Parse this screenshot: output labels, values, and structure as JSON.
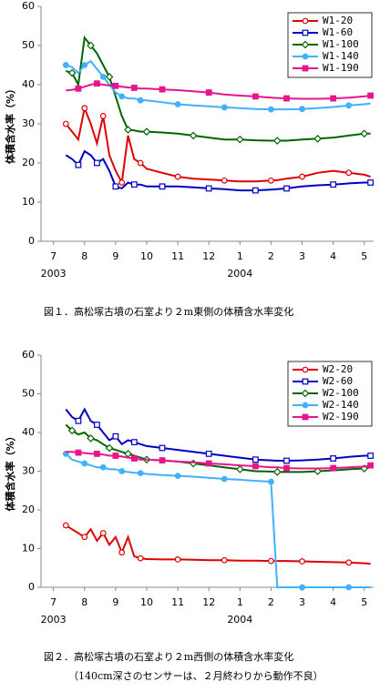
{
  "chart_data": [
    {
      "type": "line",
      "y_label": "体積含水率（%）",
      "caption": [
        "図１．高松塚古墳の石室より２m東側の体積含水率変化"
      ],
      "ylim": [
        0,
        60
      ],
      "yticks": [
        0,
        10,
        20,
        30,
        40,
        50,
        60
      ],
      "xlim": [
        6.6,
        17.3
      ],
      "xticks": [
        7,
        8,
        9,
        10,
        11,
        12,
        {
          "value": 13,
          "label": "1"
        },
        {
          "value": 14,
          "label": "2"
        },
        {
          "value": 15,
          "label": "3"
        },
        {
          "value": 16,
          "label": "4"
        },
        {
          "value": 17,
          "label": "5"
        }
      ],
      "year_labels": [
        {
          "value": 7,
          "label": "2003"
        },
        {
          "value": 13,
          "label": "2004"
        }
      ],
      "legend": "top-right",
      "x": [
        7.4,
        7.6,
        7.8,
        8,
        8.2,
        8.4,
        8.6,
        8.8,
        9,
        9.2,
        9.4,
        9.6,
        9.8,
        10,
        10.5,
        11,
        11.5,
        12,
        12.5,
        13,
        13.5,
        14,
        14.2,
        14.5,
        15,
        15.5,
        16,
        16.5,
        17,
        17.2
      ],
      "series": [
        {
          "name": "W1-20",
          "color": "#e00000",
          "marker": "circle-open",
          "values": [
            30,
            28,
            26,
            34,
            30,
            25,
            32,
            22,
            18,
            15,
            27,
            21,
            20,
            18.5,
            17.5,
            16.5,
            16,
            15.8,
            15.5,
            15.3,
            15.3,
            15.5,
            15.6,
            16,
            16.5,
            17.5,
            18,
            17.5,
            17,
            16.5
          ]
        },
        {
          "name": "W1-60",
          "color": "#0000c0",
          "marker": "square-open",
          "values": [
            22,
            21,
            19.5,
            23,
            22,
            20,
            21,
            18,
            14,
            13.5,
            15,
            14.5,
            14.5,
            14,
            14,
            14,
            13.8,
            13.5,
            13.3,
            13,
            13,
            13.2,
            13.3,
            13.5,
            14,
            14.3,
            14.5,
            14.8,
            15,
            15
          ]
        },
        {
          "name": "W1-100",
          "color": "#006400",
          "marker": "diamond-open",
          "values": [
            43.5,
            43,
            40,
            52,
            50,
            48,
            45,
            42,
            37,
            32,
            28.5,
            28.3,
            28,
            28,
            27.8,
            27.5,
            27,
            26.5,
            26,
            26,
            25.8,
            25.7,
            25.7,
            25.7,
            26,
            26.2,
            26.5,
            27,
            27.5,
            27.5
          ]
        },
        {
          "name": "W1-140",
          "color": "#40b0ff",
          "marker": "circle",
          "values": [
            45,
            44.5,
            43,
            45,
            46,
            44,
            42,
            40,
            38,
            37,
            36.5,
            36.5,
            36,
            36,
            35.5,
            35,
            34.7,
            34.5,
            34.2,
            34,
            33.8,
            33.7,
            33.7,
            33.7,
            33.8,
            34,
            34.3,
            34.7,
            35,
            35.2
          ]
        },
        {
          "name": "W1-190",
          "color": "#e8148c",
          "marker": "square",
          "values": [
            38.5,
            38.7,
            39,
            39.5,
            40,
            40.3,
            40,
            39.8,
            39.7,
            39.5,
            39.3,
            39.2,
            39,
            39,
            38.8,
            38.6,
            38.3,
            38,
            37.5,
            37.2,
            37,
            36.7,
            36.6,
            36.5,
            36.4,
            36.4,
            36.5,
            36.7,
            37,
            37.2
          ]
        }
      ]
    },
    {
      "type": "line",
      "y_label": "体積含水率（%）",
      "caption": [
        "図２．高松塚古墳の石室より２m西側の体積含水率変化",
        "（140cm深さのセンサーは、２月終わりから動作不良）"
      ],
      "ylim": [
        0,
        60
      ],
      "yticks": [
        0,
        10,
        20,
        30,
        40,
        50,
        60
      ],
      "xlim": [
        6.6,
        17.3
      ],
      "xticks": [
        7,
        8,
        9,
        10,
        11,
        12,
        {
          "value": 13,
          "label": "1"
        },
        {
          "value": 14,
          "label": "2"
        },
        {
          "value": 15,
          "label": "3"
        },
        {
          "value": 16,
          "label": "4"
        },
        {
          "value": 17,
          "label": "5"
        }
      ],
      "year_labels": [
        {
          "value": 7,
          "label": "2003"
        },
        {
          "value": 13,
          "label": "2004"
        }
      ],
      "legend": "top-right",
      "x": [
        7.4,
        7.6,
        7.8,
        8,
        8.2,
        8.4,
        8.6,
        8.8,
        9,
        9.2,
        9.4,
        9.6,
        9.8,
        10,
        10.5,
        11,
        11.5,
        12,
        12.5,
        13,
        13.5,
        14,
        14.2,
        14.5,
        15,
        15.5,
        16,
        16.5,
        17,
        17.2
      ],
      "series": [
        {
          "name": "W2-20",
          "color": "#e00000",
          "marker": "circle-open",
          "values": [
            16,
            15,
            14,
            13,
            15,
            12,
            14,
            11,
            13,
            9,
            13,
            8,
            7.5,
            7.3,
            7.2,
            7.2,
            7.1,
            7,
            7,
            6.9,
            6.9,
            6.8,
            6.8,
            6.8,
            6.7,
            6.6,
            6.5,
            6.4,
            6.2,
            6.1
          ]
        },
        {
          "name": "W2-60",
          "color": "#0000c0",
          "marker": "square-open",
          "values": [
            46,
            44,
            43,
            46,
            43,
            42,
            40,
            38,
            39,
            37,
            38,
            37.5,
            37,
            36.5,
            36,
            35.5,
            35,
            34.5,
            34,
            33.5,
            33,
            32.8,
            32.7,
            32.7,
            32.8,
            33,
            33.3,
            33.7,
            34,
            34
          ]
        },
        {
          "name": "W2-100",
          "color": "#006400",
          "marker": "diamond-open",
          "values": [
            42,
            40.5,
            39.5,
            40,
            38.5,
            38,
            37,
            36,
            35.5,
            35,
            34.5,
            34,
            33.5,
            33,
            32.8,
            32.5,
            32,
            31.5,
            31,
            30.5,
            30,
            29.9,
            29.8,
            29.8,
            29.8,
            30,
            30.2,
            30.5,
            30.7,
            31
          ]
        },
        {
          "name": "W2-140",
          "color": "#40b0ff",
          "marker": "circle",
          "values": [
            34.5,
            33,
            32.5,
            32,
            31.5,
            31,
            31,
            30.5,
            30.5,
            30,
            29.8,
            29.6,
            29.5,
            29.3,
            29,
            28.8,
            28.6,
            28.3,
            28,
            27.8,
            27.5,
            27.3,
            0,
            0,
            0,
            0,
            0,
            0,
            0,
            0
          ]
        },
        {
          "name": "W2-190",
          "color": "#e8148c",
          "marker": "square",
          "values": [
            35,
            35,
            34.8,
            34.7,
            34.5,
            34.5,
            34.3,
            34,
            34,
            33.8,
            33.5,
            33.3,
            33,
            33,
            32.8,
            32.5,
            32.3,
            32,
            31.8,
            31.5,
            31.3,
            31,
            31,
            30.8,
            30.7,
            30.7,
            30.8,
            31,
            31.2,
            31.5
          ]
        }
      ]
    }
  ]
}
